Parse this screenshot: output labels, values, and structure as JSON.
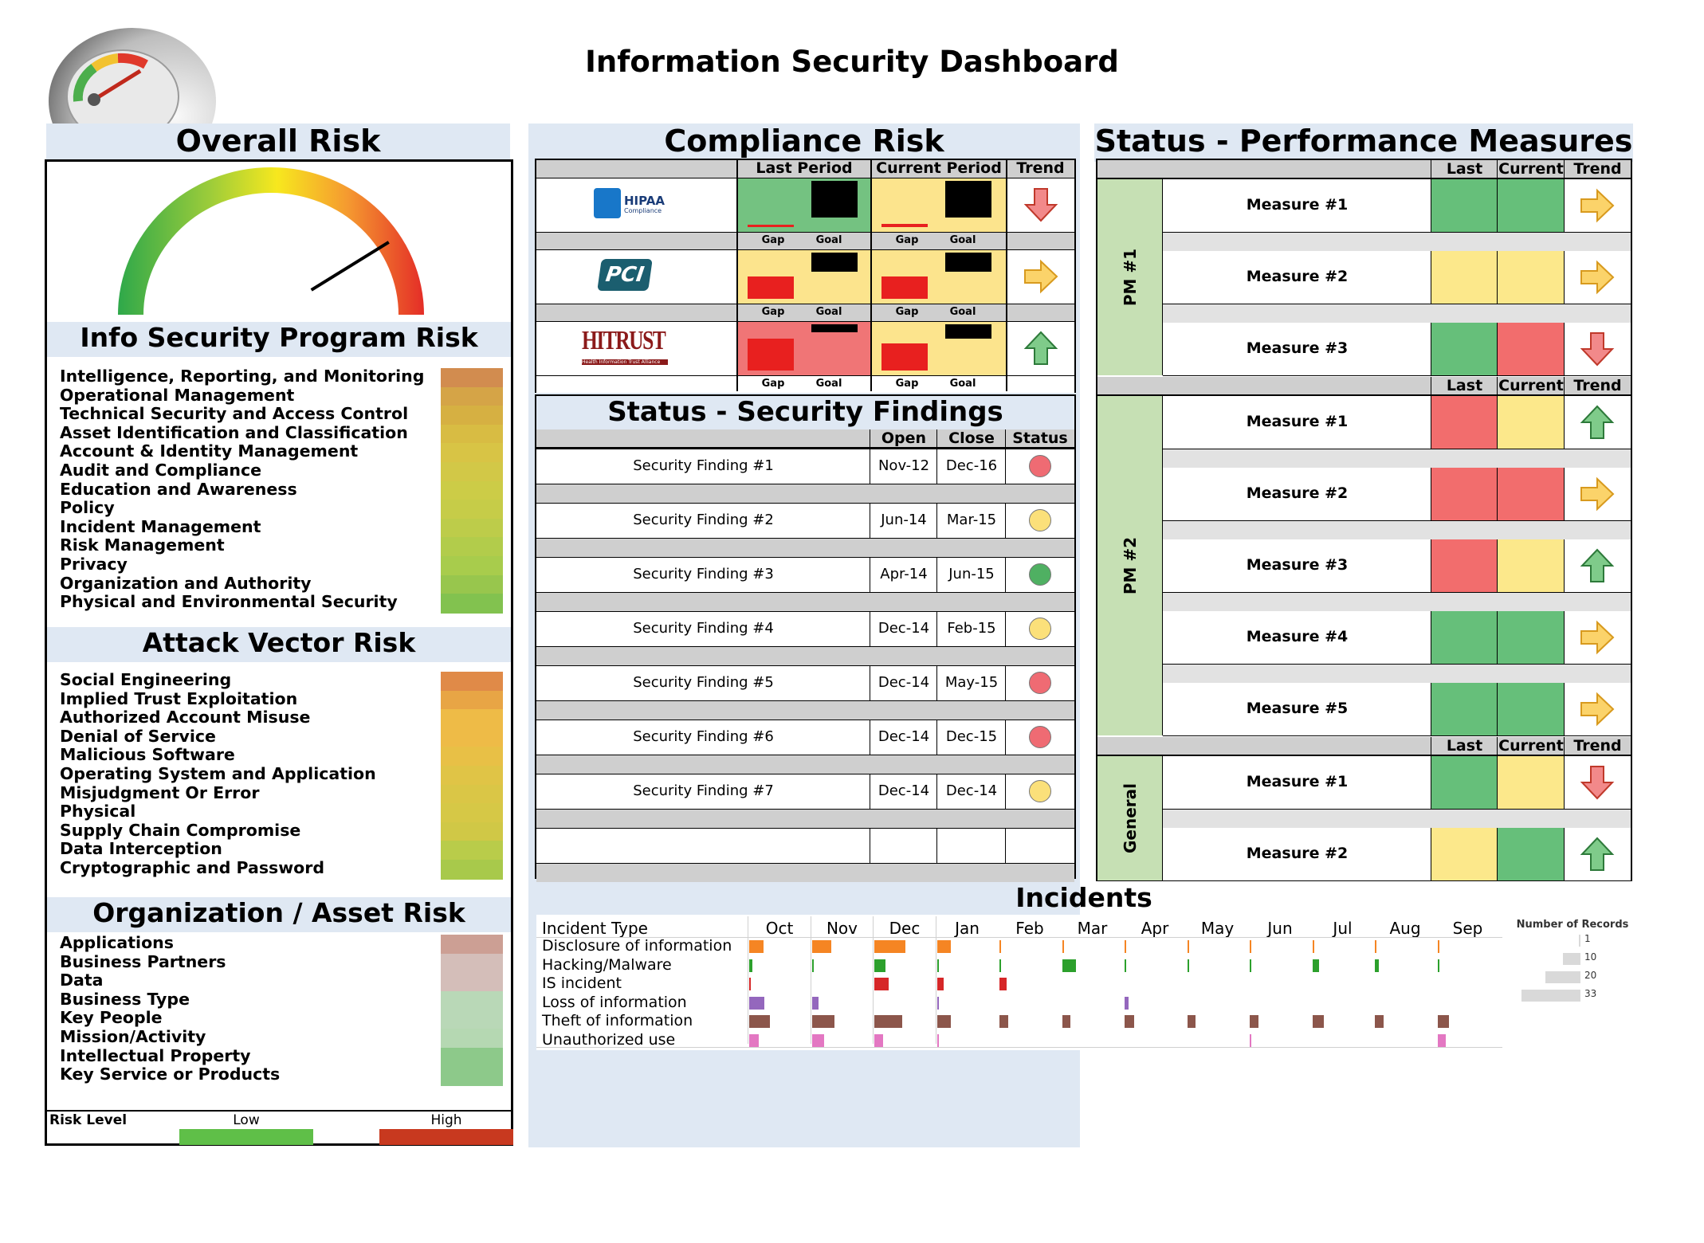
{
  "page_title": "Information Security Dashboard",
  "overall": {
    "title": "Overall Risk",
    "gauge_value": 0.82
  },
  "program_risk": {
    "title": "Info Security Program Risk",
    "items": [
      {
        "label": "Intelligence, Reporting, and Monitoring",
        "color": "#d28c4f"
      },
      {
        "label": "Operational Management",
        "color": "#d5a447"
      },
      {
        "label": "Technical Security and Access Control",
        "color": "#d6b042"
      },
      {
        "label": "Asset Identification and Classification",
        "color": "#d8bc43"
      },
      {
        "label": "Account & Identity Management",
        "color": "#d8c445"
      },
      {
        "label": "Audit and Compliance",
        "color": "#d2c847"
      },
      {
        "label": "Education and Awareness",
        "color": "#cccc47"
      },
      {
        "label": "Policy",
        "color": "#c6cc48"
      },
      {
        "label": "Incident Management",
        "color": "#bdcc4a"
      },
      {
        "label": "Risk Management",
        "color": "#b2cc4b"
      },
      {
        "label": "Privacy",
        "color": "#a8cc4c"
      },
      {
        "label": "Organization and Authority",
        "color": "#98c64d"
      },
      {
        "label": "Physical and Environmental Security",
        "color": "#82c24f"
      }
    ]
  },
  "attack_risk": {
    "title": "Attack Vector Risk",
    "items": [
      {
        "label": "Social Engineering",
        "color": "#e08a48"
      },
      {
        "label": "Implied Trust Exploitation",
        "color": "#e8a545"
      },
      {
        "label": "Authorized Account Misuse",
        "color": "#eebb47"
      },
      {
        "label": "Denial of Service",
        "color": "#eebb47"
      },
      {
        "label": "Malicious Software",
        "color": "#e8c046"
      },
      {
        "label": "Operating System and Application",
        "color": "#e0c446"
      },
      {
        "label": "Misjudgment Or Error",
        "color": "#dac646"
      },
      {
        "label": "Physical",
        "color": "#d6c846"
      },
      {
        "label": "Supply Chain Compromise",
        "color": "#d0c846"
      },
      {
        "label": "Data Interception",
        "color": "#b9cc4a"
      },
      {
        "label": "Cryptographic and Password",
        "color": "#a8c94b"
      }
    ]
  },
  "org_risk": {
    "title": "Organization / Asset Risk",
    "items": [
      {
        "label": "Applications",
        "color": "#cc9f94"
      },
      {
        "label": "Business Partners",
        "color": "#d4beb9"
      },
      {
        "label": "Data",
        "color": "#d4beb9"
      },
      {
        "label": "Business Type",
        "color": "#b9d8b7"
      },
      {
        "label": "Key People",
        "color": "#b9d8b7"
      },
      {
        "label": "Mission/Activity",
        "color": "#b5d8b2"
      },
      {
        "label": "Intellectual Property",
        "color": "#8dc98a"
      },
      {
        "label": "Key Service or Products",
        "color": "#8dc98a"
      }
    ]
  },
  "legend": {
    "title": "Risk Level",
    "low": "Low",
    "high": "High",
    "low_color": "#5fbf48",
    "high_color": "#c8391f"
  },
  "compliance": {
    "title": "Compliance Risk",
    "headers": {
      "last": "Last Period",
      "current": "Current Period",
      "trend": "Trend"
    },
    "gap_label": "Gap",
    "goal_label": "Goal",
    "rows": [
      {
        "logo": "HIPAA",
        "logo_sub": "Compliance",
        "last_bg": "#74c281",
        "current_bg": "#fce48d",
        "last_gap": 0.02,
        "last_goal": 0.82,
        "current_gap": 0.08,
        "current_goal": 0.82,
        "trend": "down"
      },
      {
        "logo": "PCI",
        "logo_sub": "",
        "last_bg": "#fce48d",
        "current_bg": "#fce48d",
        "last_gap": 0.5,
        "last_goal": 0.42,
        "current_gap": 0.5,
        "current_goal": 0.42,
        "trend": "right"
      },
      {
        "logo": "HITRUST",
        "logo_sub": "Health Information Trust Alliance",
        "last_bg": "#f07576",
        "current_bg": "#fce48d",
        "last_gap": 0.72,
        "last_goal": 0.18,
        "current_gap": 0.6,
        "current_goal": 0.32,
        "trend": "up"
      }
    ]
  },
  "findings": {
    "title": "Status - Security Findings",
    "headers": {
      "open": "Open",
      "close": "Close",
      "status": "Status"
    },
    "rows": [
      {
        "name": "Security Finding #1",
        "open": "Nov-12",
        "close": "Dec-16",
        "status": "red"
      },
      {
        "name": "Security Finding #2",
        "open": "Jun-14",
        "close": "Mar-15",
        "status": "yellow"
      },
      {
        "name": "Security Finding #3",
        "open": "Apr-14",
        "close": "Jun-15",
        "status": "green"
      },
      {
        "name": "Security Finding #4",
        "open": "Dec-14",
        "close": "Feb-15",
        "status": "yellow"
      },
      {
        "name": "Security Finding #5",
        "open": "Dec-14",
        "close": "May-15",
        "status": "red"
      },
      {
        "name": "Security Finding #6",
        "open": "Dec-14",
        "close": "Dec-15",
        "status": "red"
      },
      {
        "name": "Security Finding #7",
        "open": "Dec-14",
        "close": "Dec-14",
        "status": "yellow"
      }
    ]
  },
  "performance": {
    "title": "Status - Performance Measures",
    "headers": {
      "last": "Last",
      "current": "Current",
      "trend": "Trend"
    },
    "groups": [
      {
        "label": "PM #1",
        "measures": [
          {
            "name": "Measure #1",
            "last": "green",
            "current": "green",
            "trend": "right"
          },
          {
            "name": "Measure #2",
            "last": "yellow",
            "current": "yellow",
            "trend": "right"
          },
          {
            "name": "Measure #3",
            "last": "green",
            "current": "red",
            "trend": "down"
          }
        ]
      },
      {
        "label": "PM #2",
        "measures": [
          {
            "name": "Measure #1",
            "last": "red",
            "current": "yellow",
            "trend": "up"
          },
          {
            "name": "Measure #2",
            "last": "red",
            "current": "red",
            "trend": "right"
          },
          {
            "name": "Measure #3",
            "last": "red",
            "current": "yellow",
            "trend": "up"
          },
          {
            "name": "Measure #4",
            "last": "green",
            "current": "green",
            "trend": "right"
          },
          {
            "name": "Measure #5",
            "last": "green",
            "current": "green",
            "trend": "right"
          }
        ]
      },
      {
        "label": "General",
        "measures": [
          {
            "name": "Measure #1",
            "last": "green",
            "current": "yellow",
            "trend": "down"
          },
          {
            "name": "Measure #2",
            "last": "yellow",
            "current": "green",
            "trend": "up"
          }
        ]
      }
    ]
  },
  "incidents": {
    "title": "Incidents",
    "type_header": "Incident Type",
    "months": [
      "Oct",
      "Nov",
      "Dec",
      "Jan",
      "Feb",
      "Mar",
      "Apr",
      "May",
      "Jun",
      "Jul",
      "Aug",
      "Sep"
    ],
    "types": [
      {
        "label": "Disclosure of information",
        "color": "#f58523",
        "counts": [
          10,
          14,
          22,
          10,
          1,
          1,
          1,
          1,
          1,
          1,
          1,
          1
        ]
      },
      {
        "label": "Hacking/Malware",
        "color": "#2ca02c",
        "counts": [
          2,
          1,
          8,
          1,
          1,
          10,
          1,
          1,
          1,
          5,
          3,
          1
        ]
      },
      {
        "label": "IS incident",
        "color": "#d62728",
        "counts": [
          1,
          0,
          10,
          5,
          5,
          0,
          0,
          0,
          0,
          0,
          0,
          0
        ]
      },
      {
        "label": "Loss of information",
        "color": "#9467bd",
        "counts": [
          11,
          5,
          0,
          1,
          0,
          0,
          3,
          0,
          0,
          0,
          0,
          0
        ]
      },
      {
        "label": "Theft of information",
        "color": "#8c564b",
        "counts": [
          15,
          16,
          20,
          10,
          6,
          6,
          7,
          6,
          6,
          8,
          6,
          8
        ]
      },
      {
        "label": "Unauthorized use",
        "color": "#e377c2",
        "counts": [
          7,
          9,
          6,
          1,
          0,
          0,
          0,
          0,
          1,
          0,
          0,
          6
        ]
      }
    ],
    "size_legend": {
      "title": "Number of Records",
      "values": [
        "1",
        "10",
        "20",
        "33"
      ]
    }
  },
  "colors": {
    "green": "#66bf7a",
    "yellow": "#fce88b",
    "red": "#f26d6d",
    "dot_red": "#ef6b73",
    "dot_yellow": "#fbe07a",
    "dot_green": "#4fb062"
  }
}
